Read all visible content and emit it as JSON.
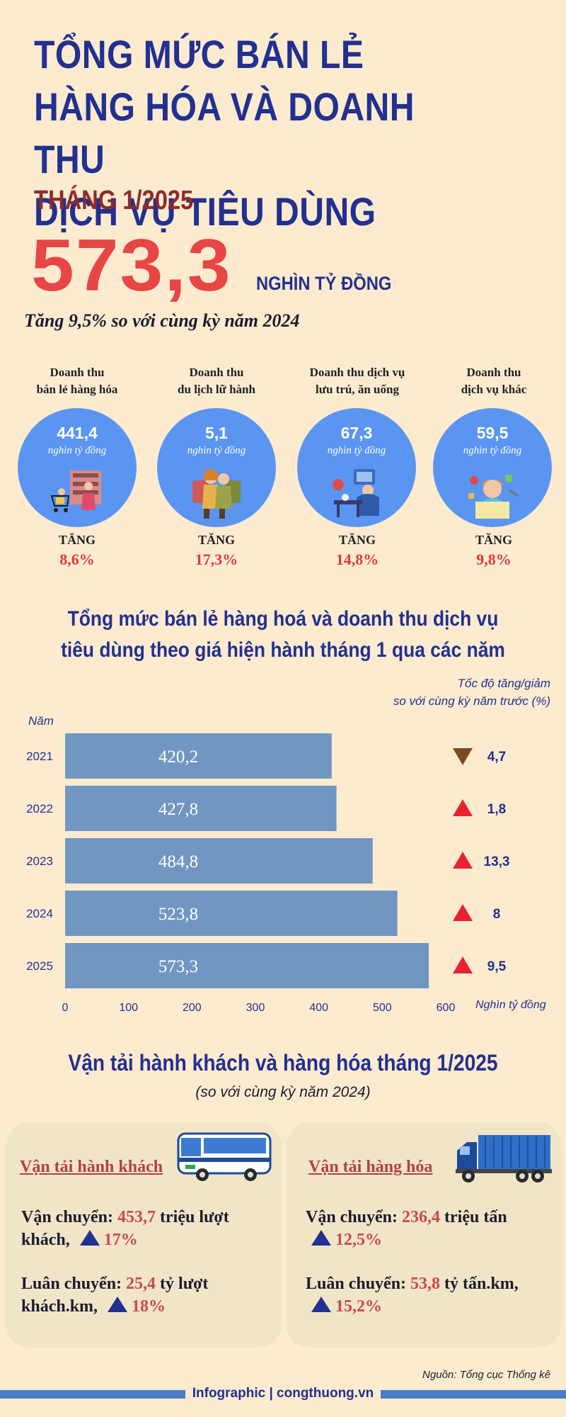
{
  "header": {
    "title_line1": "TỔNG MỨC BÁN LẺ",
    "title_line2": "HÀNG HÓA VÀ DOANH THU",
    "title_line3": "DỊCH VỤ TIÊU DÙNG",
    "month": "THÁNG 1/2025",
    "total_value": "573,3",
    "total_unit": "NGHÌN TỶ ĐỒNG",
    "growth_text": "Tăng 9,5% so với cùng kỳ năm 2024"
  },
  "categories": [
    {
      "label_line1": "Doanh thu",
      "label_line2": "bán lẻ hàng hóa",
      "value": "441,4",
      "unit": "nghìn tỷ đồng",
      "increase_label": "TĂNG",
      "increase": "8,6%",
      "icon": "shopping-cart-icon"
    },
    {
      "label_line1": "Doanh thu",
      "label_line2": "du lịch lữ hành",
      "value": "5,1",
      "unit": "nghìn tỷ đồng",
      "increase_label": "TĂNG",
      "increase": "17,3%",
      "icon": "travelers-icon"
    },
    {
      "label_line1": "Doanh thu dịch vụ",
      "label_line2": "lưu trú, ăn uống",
      "value": "67,3",
      "unit": "nghìn tỷ đồng",
      "increase_label": "TĂNG",
      "increase": "14,8%",
      "icon": "restaurant-icon"
    },
    {
      "label_line1": "Doanh thu",
      "label_line2": "dịch vụ khác",
      "value": "59,5",
      "unit": "nghìn tỷ đồng",
      "increase_label": "TĂNG",
      "increase": "9,8%",
      "icon": "service-worker-icon"
    }
  ],
  "chart_section": {
    "title_line1": "Tổng mức bán lẻ hàng hoá và doanh thu dịch vụ",
    "title_line2": "tiêu dùng theo giá hiện hành tháng 1 qua các năm",
    "rate_head_line1": "Tốc độ tăng/giảm",
    "rate_head_line2": "so với cùng kỳ năm trước (%)",
    "year_head": "Năm",
    "x_unit": "Nghìn tỷ đồng"
  },
  "chart_data": {
    "type": "bar",
    "orientation": "horizontal",
    "categories": [
      "2021",
      "2022",
      "2023",
      "2024",
      "2025"
    ],
    "values": [
      420.2,
      427.8,
      484.8,
      523.8,
      573.3
    ],
    "value_labels": [
      "420,2",
      "427,8",
      "484,8",
      "523,8",
      "573,3"
    ],
    "growth_rates": [
      -4.7,
      1.8,
      13.3,
      8,
      9.5
    ],
    "growth_labels": [
      "4,7",
      "1,8",
      "13,3",
      "8",
      "9,5"
    ],
    "xlim": [
      0,
      600
    ],
    "xticks": [
      "0",
      "100",
      "200",
      "300",
      "400",
      "500",
      "600"
    ],
    "bar_color": "#7196c2",
    "up_color": "#e8232f",
    "down_color": "#7a4a1e",
    "grid": false
  },
  "transport": {
    "title": "Vận tải hành khách và hàng hóa tháng 1/2025",
    "subtitle": "(so với cùng kỳ năm 2024)",
    "passenger": {
      "heading": "Vận tải hành khách",
      "carry_label": "Vận chuyển: ",
      "carry_value": "453,7",
      "carry_unit": " triệu lượt",
      "carry_unit2": "khách, ",
      "carry_change": "17%",
      "rotate_label": "Luân chuyển: ",
      "rotate_value": "25,4",
      "rotate_unit": " tỷ lượt",
      "rotate_unit2": "khách.km, ",
      "rotate_change": "18%"
    },
    "freight": {
      "heading": "Vận tải hàng hóa",
      "carry_label": "Vận chuyển: ",
      "carry_value": "236,4",
      "carry_unit": " triệu tấn",
      "carry_change": "12,5%",
      "rotate_label": "Luân chuyển: ",
      "rotate_value": "53,8",
      "rotate_unit": " tỷ tấn.km,",
      "rotate_change": "15,2%"
    }
  },
  "footer": {
    "source": "Nguồn: Tổng cục Thống kê",
    "brand": "Infographic | congthuong.vn"
  },
  "colors": {
    "background": "#fdebd0",
    "navy": "#22308f",
    "red": "#e84545",
    "circle_blue": "#5b95f2"
  }
}
